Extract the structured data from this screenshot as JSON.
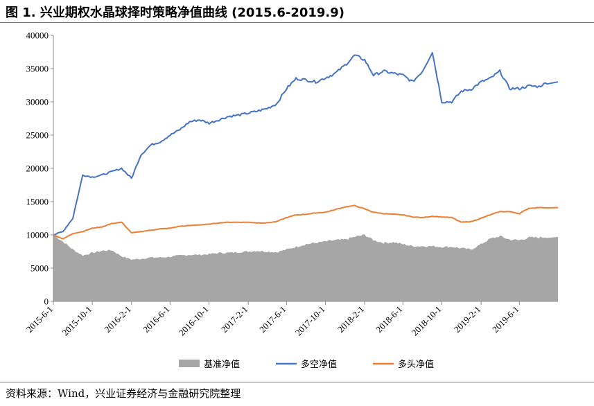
{
  "header": {
    "title": "图 1. 兴业期权水晶球择时策略净值曲线 (2015.6-2019.9)"
  },
  "footer": {
    "source": "资料来源：Wind，兴业证券经济与金融研究院整理"
  },
  "chart_data": {
    "type": "area",
    "ylim": [
      0,
      40000
    ],
    "yticks": [
      "0",
      "5000",
      "10000",
      "15000",
      "20000",
      "25000",
      "30000",
      "35000",
      "40000"
    ],
    "xticks": [
      "2015-6-1",
      "2015-10-1",
      "2016-2-1",
      "2016-6-1",
      "2016-10-1",
      "2017-2-1",
      "2017-6-1",
      "2017-10-1",
      "2018-2-1",
      "2018-6-1",
      "2018-10-1",
      "2019-2-1",
      "2019-6-1"
    ],
    "x": [
      "2015-6-1",
      "2015-7-1",
      "2015-8-1",
      "2015-9-1",
      "2015-10-1",
      "2015-11-1",
      "2015-12-1",
      "2016-1-1",
      "2016-2-1",
      "2016-3-1",
      "2016-4-1",
      "2016-5-1",
      "2016-6-1",
      "2016-7-1",
      "2016-8-1",
      "2016-9-1",
      "2016-10-1",
      "2016-11-1",
      "2016-12-1",
      "2017-1-1",
      "2017-2-1",
      "2017-3-1",
      "2017-4-1",
      "2017-5-1",
      "2017-6-1",
      "2017-7-1",
      "2017-8-1",
      "2017-9-1",
      "2017-10-1",
      "2017-11-1",
      "2017-12-1",
      "2018-1-1",
      "2018-2-1",
      "2018-3-1",
      "2018-4-1",
      "2018-5-1",
      "2018-6-1",
      "2018-7-1",
      "2018-8-1",
      "2018-9-1",
      "2018-10-1",
      "2018-11-1",
      "2018-12-1",
      "2019-1-1",
      "2019-2-1",
      "2019-3-1",
      "2019-4-1",
      "2019-5-1",
      "2019-6-1",
      "2019-7-1",
      "2019-8-1",
      "2019-9-1"
    ],
    "series": [
      {
        "name": "基准净值",
        "kind": "area",
        "color": "#a6a6a6",
        "values": [
          10000,
          9000,
          7800,
          6900,
          7300,
          7600,
          7700,
          6800,
          6300,
          6400,
          6600,
          6600,
          6700,
          6900,
          7000,
          7000,
          7100,
          7300,
          7300,
          7400,
          7500,
          7600,
          7500,
          7400,
          7800,
          8200,
          8600,
          8800,
          9000,
          9200,
          9300,
          9700,
          10000,
          9200,
          8800,
          8900,
          8600,
          8300,
          8300,
          8300,
          8200,
          8200,
          8000,
          7800,
          8600,
          9400,
          9800,
          9300,
          9200,
          9600,
          9600,
          9700
        ]
      },
      {
        "name": "多空净值",
        "kind": "line",
        "color": "#4472c4",
        "values": [
          10000,
          10500,
          12500,
          19000,
          18700,
          19000,
          19500,
          20000,
          18500,
          22000,
          23500,
          24000,
          25000,
          25800,
          27000,
          27300,
          26800,
          27300,
          27800,
          28000,
          28300,
          28600,
          29000,
          29700,
          32000,
          33500,
          33300,
          33000,
          33600,
          34300,
          35500,
          37000,
          36300,
          34000,
          34600,
          34300,
          34000,
          33000,
          34600,
          37500,
          30000,
          30000,
          31600,
          31900,
          33000,
          33500,
          34600,
          32000,
          32000,
          32400,
          32300,
          33000
        ]
      },
      {
        "name": "多头净值",
        "kind": "line",
        "color": "#ed7d31",
        "values": [
          10000,
          9400,
          10200,
          10500,
          11000,
          11200,
          11700,
          11900,
          10300,
          10500,
          10700,
          10900,
          11000,
          11300,
          11400,
          11500,
          11600,
          11800,
          11900,
          11900,
          11900,
          11800,
          11800,
          12000,
          12600,
          13000,
          13100,
          13300,
          13400,
          13800,
          14200,
          14400,
          13900,
          13400,
          13200,
          13100,
          13000,
          12700,
          12600,
          12800,
          12700,
          12600,
          11900,
          12000,
          12500,
          13000,
          13500,
          13500,
          13200,
          14000,
          14100,
          14100
        ]
      }
    ],
    "legend_position": "bottom"
  }
}
